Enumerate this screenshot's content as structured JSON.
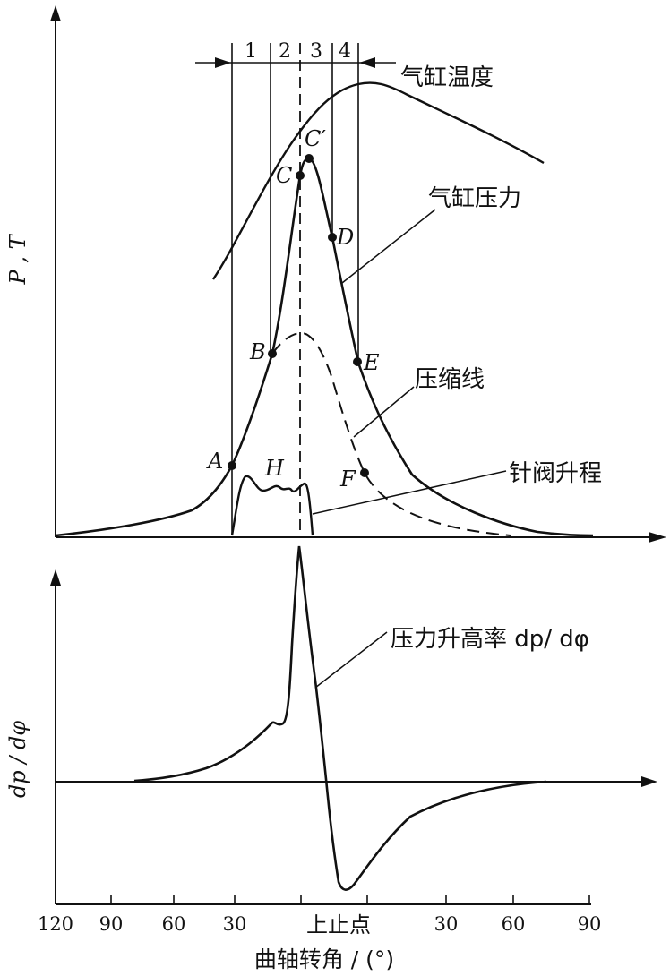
{
  "upper": {
    "y_axis_label": "P , T",
    "zones": [
      "1",
      "2",
      "3",
      "4"
    ],
    "labels": {
      "temperature": "气缸温度",
      "pressure": "气缸压力",
      "compression": "压缩线",
      "needle_lift": "针阀升程"
    },
    "points": [
      "A",
      "B",
      "C",
      "C′",
      "D",
      "E",
      "F",
      "H"
    ]
  },
  "lower": {
    "y_axis_label": "dp / dφ",
    "rate_label": "压力升高率 dp/ dφ"
  },
  "x_axis": {
    "title": "曲轴转角 / (°)",
    "ticks": [
      "120",
      "90",
      "60",
      "30",
      "上止点",
      "30",
      "60",
      "90"
    ]
  },
  "colors": {
    "ink": "#111111",
    "background": "#ffffff"
  }
}
